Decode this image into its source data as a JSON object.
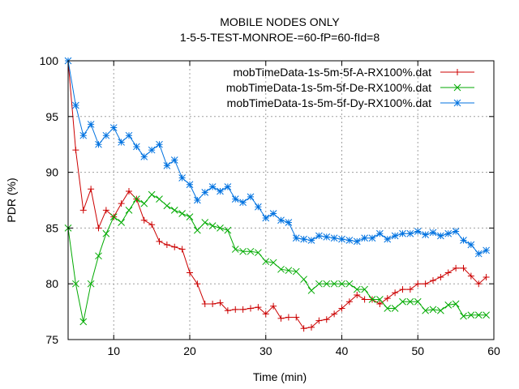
{
  "chart_data": {
    "type": "line",
    "title": "MOBILE NODES ONLY",
    "subtitle": "1-5-5-TEST-MONROE-=60-fP=60-fId=8",
    "xlabel": "Time (min)",
    "ylabel": "PDR (%)",
    "xlim": [
      4,
      60
    ],
    "ylim": [
      75,
      100
    ],
    "xticks": [
      10,
      20,
      30,
      40,
      50,
      60
    ],
    "yticks": [
      75,
      80,
      85,
      90,
      95,
      100
    ],
    "grid": true,
    "legend_position": "top-right",
    "series": [
      {
        "name": "mobTimeData-1s-5m-5f-A-RX100%.dat",
        "color": "#cc0000",
        "marker": "plus",
        "x": [
          4,
          5,
          6,
          7,
          8,
          9,
          10,
          11,
          12,
          13,
          14,
          15,
          16,
          17,
          18,
          19,
          20,
          21,
          22,
          23,
          24,
          25,
          26,
          27,
          28,
          29,
          30,
          31,
          32,
          33,
          34,
          35,
          36,
          37,
          38,
          39,
          40,
          41,
          42,
          43,
          44,
          45,
          46,
          47,
          48,
          49,
          50,
          51,
          52,
          53,
          54,
          55,
          56,
          57,
          58,
          59
        ],
        "values": [
          100,
          92.0,
          86.6,
          88.5,
          85.0,
          86.6,
          86.0,
          87.2,
          88.3,
          87.6,
          85.7,
          85.3,
          83.8,
          83.5,
          83.3,
          83.1,
          81.0,
          80.0,
          78.2,
          78.2,
          78.3,
          77.6,
          77.7,
          77.7,
          77.8,
          77.9,
          77.3,
          78.0,
          76.9,
          77.0,
          77.0,
          76.0,
          76.1,
          76.7,
          76.8,
          77.3,
          77.8,
          78.4,
          79.0,
          78.6,
          78.6,
          78.2,
          78.7,
          79.2,
          79.5,
          79.5,
          80.0,
          80.0,
          80.3,
          80.6,
          81.0,
          81.4,
          81.4,
          80.7,
          80.0,
          80.6
        ]
      },
      {
        "name": "mobTimeData-1s-5m-5f-De-RX100%.dat",
        "color": "#00aa00",
        "marker": "cross",
        "x": [
          4,
          5,
          6,
          7,
          8,
          9,
          10,
          11,
          12,
          13,
          14,
          15,
          16,
          17,
          18,
          19,
          20,
          21,
          22,
          23,
          24,
          25,
          26,
          27,
          28,
          29,
          30,
          31,
          32,
          33,
          34,
          35,
          36,
          37,
          38,
          39,
          40,
          41,
          42,
          43,
          44,
          45,
          46,
          47,
          48,
          49,
          50,
          51,
          52,
          53,
          54,
          55,
          56,
          57,
          58,
          59
        ],
        "values": [
          85.0,
          80.0,
          76.6,
          80.0,
          82.5,
          84.5,
          86.0,
          85.5,
          86.6,
          87.6,
          87.2,
          88.0,
          87.6,
          87.0,
          86.6,
          86.3,
          86.0,
          84.8,
          85.5,
          85.2,
          85.0,
          84.8,
          83.1,
          82.9,
          82.9,
          82.8,
          82.0,
          81.9,
          81.3,
          81.2,
          81.1,
          80.4,
          79.4,
          80.0,
          80.0,
          80.0,
          80.0,
          80.0,
          79.5,
          79.5,
          78.6,
          78.6,
          77.8,
          77.8,
          78.4,
          78.4,
          78.4,
          77.6,
          77.7,
          77.6,
          78.1,
          78.2,
          77.1,
          77.2,
          77.2,
          77.2
        ]
      },
      {
        "name": "mobTimeData-1s-5m-5f-Dy-RX100%.dat",
        "color": "#0072e0",
        "marker": "star",
        "x": [
          4,
          5,
          6,
          7,
          8,
          9,
          10,
          11,
          12,
          13,
          14,
          15,
          16,
          17,
          18,
          19,
          20,
          21,
          22,
          23,
          24,
          25,
          26,
          27,
          28,
          29,
          30,
          31,
          32,
          33,
          34,
          35,
          36,
          37,
          38,
          39,
          40,
          41,
          42,
          43,
          44,
          45,
          46,
          47,
          48,
          49,
          50,
          51,
          52,
          53,
          54,
          55,
          56,
          57,
          58,
          59
        ],
        "values": [
          100,
          96.0,
          93.3,
          94.3,
          92.5,
          93.3,
          94.0,
          92.7,
          93.3,
          92.3,
          91.4,
          92.0,
          92.5,
          90.6,
          91.1,
          89.5,
          88.9,
          87.5,
          88.2,
          88.7,
          88.3,
          88.7,
          87.6,
          87.3,
          87.8,
          86.9,
          85.9,
          86.3,
          85.7,
          85.5,
          84.1,
          84.0,
          83.9,
          84.3,
          84.2,
          84.1,
          84.0,
          83.9,
          83.8,
          84.1,
          84.1,
          84.5,
          84.0,
          84.3,
          84.5,
          84.5,
          84.7,
          84.4,
          84.6,
          84.3,
          84.5,
          84.7,
          83.9,
          83.5,
          82.7,
          83.0
        ]
      }
    ]
  }
}
